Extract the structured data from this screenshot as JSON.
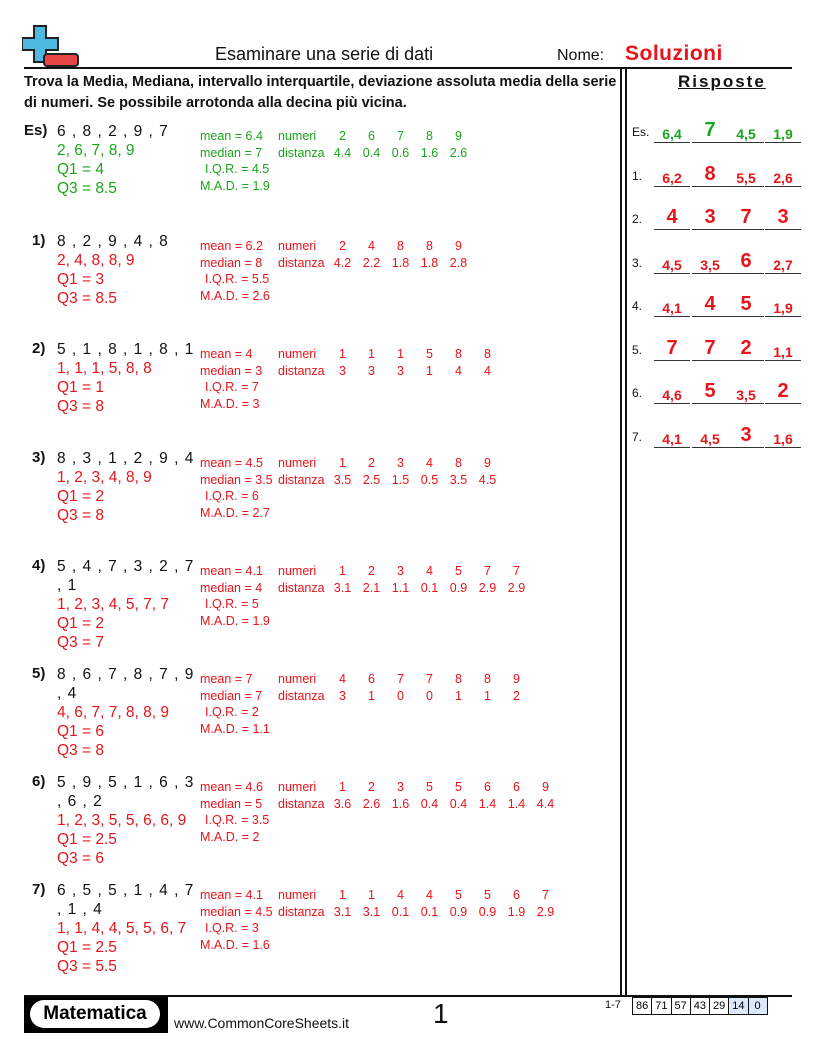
{
  "header": {
    "title": "Esaminare una serie di dati",
    "name_label": "Nome:",
    "name_value": "Soluzioni"
  },
  "instructions": "Trova la Media, Mediana, intervallo interquartile, deviazione assoluta media della serie di numeri. Se possibile arrotonda alla decina più vicina.",
  "answers_title": "Risposte",
  "colors": {
    "example": "#1aa51a",
    "answer": "#e8141b",
    "logo_blue": "#4db8e0",
    "logo_red": "#e84545"
  },
  "problems": [
    {
      "label": "Es)",
      "data": "6 , 8 , 2 , 9 , 7",
      "sorted": "2, 6, 7, 8, 9",
      "q1": "Q1 = 4",
      "q3": "Q3 = 8.5",
      "mean": "mean = 6.4",
      "median": "median = 7",
      "numeri_label": "numeri",
      "distanza_label": "distanza",
      "numeri": [
        "2",
        "6",
        "7",
        "8",
        "9"
      ],
      "distanza": [
        "4.4",
        "0.4",
        "0.6",
        "1.6",
        "2.6"
      ],
      "iqr": "I.Q.R. = 4.5",
      "mad": "M.A.D. = 1.9"
    },
    {
      "label": "1)",
      "data": "8 , 2 , 9 , 4 , 8",
      "sorted": "2, 4, 8, 8, 9",
      "q1": "Q1 = 3",
      "q3": "Q3 = 8.5",
      "mean": "mean = 6.2",
      "median": "median = 8",
      "numeri_label": "numeri",
      "distanza_label": "distanza",
      "numeri": [
        "2",
        "4",
        "8",
        "8",
        "9"
      ],
      "distanza": [
        "4.2",
        "2.2",
        "1.8",
        "1.8",
        "2.8"
      ],
      "iqr": "I.Q.R. = 5.5",
      "mad": "M.A.D. = 2.6"
    },
    {
      "label": "2)",
      "data": "5 , 1 , 8 , 1 , 8 , 1",
      "sorted": "1, 1, 1, 5, 8, 8",
      "q1": "Q1 = 1",
      "q3": "Q3 = 8",
      "mean": "mean = 4",
      "median": "median = 3",
      "numeri_label": "numeri",
      "distanza_label": "distanza",
      "numeri": [
        "1",
        "1",
        "1",
        "5",
        "8",
        "8"
      ],
      "distanza": [
        "3",
        "3",
        "3",
        "1",
        "4",
        "4"
      ],
      "iqr": "I.Q.R. = 7",
      "mad": "M.A.D. = 3"
    },
    {
      "label": "3)",
      "data": "8 , 3 , 1 , 2 , 9 , 4",
      "sorted": "1, 2, 3, 4, 8, 9",
      "q1": "Q1 = 2",
      "q3": "Q3 = 8",
      "mean": "mean = 4.5",
      "median": "median = 3.5",
      "numeri_label": "numeri",
      "distanza_label": "distanza",
      "numeri": [
        "1",
        "2",
        "3",
        "4",
        "8",
        "9"
      ],
      "distanza": [
        "3.5",
        "2.5",
        "1.5",
        "0.5",
        "3.5",
        "4.5"
      ],
      "iqr": "I.Q.R. = 6",
      "mad": "M.A.D. = 2.7"
    },
    {
      "label": "4)",
      "data": "5 , 4 , 7 , 3 , 2 , 7 , 1",
      "sorted": "1, 2, 3, 4, 5, 7, 7",
      "q1": "Q1 = 2",
      "q3": "Q3 = 7",
      "mean": "mean = 4.1",
      "median": "median = 4",
      "numeri_label": "numeri",
      "distanza_label": "distanza",
      "numeri": [
        "1",
        "2",
        "3",
        "4",
        "5",
        "7",
        "7"
      ],
      "distanza": [
        "3.1",
        "2.1",
        "1.1",
        "0.1",
        "0.9",
        "2.9",
        "2.9"
      ],
      "iqr": "I.Q.R. = 5",
      "mad": "M.A.D. = 1.9"
    },
    {
      "label": "5)",
      "data": "8 , 6 , 7 , 8 , 7 , 9 , 4",
      "sorted": "4, 6, 7, 7, 8, 8, 9",
      "q1": "Q1 = 6",
      "q3": "Q3 = 8",
      "mean": "mean = 7",
      "median": "median = 7",
      "numeri_label": "numeri",
      "distanza_label": "distanza",
      "numeri": [
        "4",
        "6",
        "7",
        "7",
        "8",
        "8",
        "9"
      ],
      "distanza": [
        "3",
        "1",
        "0",
        "0",
        "1",
        "1",
        "2"
      ],
      "iqr": "I.Q.R. = 2",
      "mad": "M.A.D. = 1.1"
    },
    {
      "label": "6)",
      "data": "5 , 9 , 5 , 1 , 6 , 3 , 6 , 2",
      "sorted": "1, 2, 3, 5, 5, 6, 6, 9",
      "q1": "Q1 = 2.5",
      "q3": "Q3 = 6",
      "mean": "mean = 4.6",
      "median": "median = 5",
      "numeri_label": "numeri",
      "distanza_label": "distanza",
      "numeri": [
        "1",
        "2",
        "3",
        "5",
        "5",
        "6",
        "6",
        "9"
      ],
      "distanza": [
        "3.6",
        "2.6",
        "1.6",
        "0.4",
        "0.4",
        "1.4",
        "1.4",
        "4.4"
      ],
      "iqr": "I.Q.R. = 3.5",
      "mad": "M.A.D. = 2"
    },
    {
      "label": "7)",
      "data": "6 , 5 , 5 , 1 , 4 , 7 , 1 , 4",
      "sorted": "1, 1, 4, 4, 5, 5, 6, 7",
      "q1": "Q1 = 2.5",
      "q3": "Q3 = 5.5",
      "mean": "mean = 4.1",
      "median": "median = 4.5",
      "numeri_label": "numeri",
      "distanza_label": "distanza",
      "numeri": [
        "1",
        "1",
        "4",
        "4",
        "5",
        "5",
        "6",
        "7"
      ],
      "distanza": [
        "3.1",
        "3.1",
        "0.1",
        "0.1",
        "0.9",
        "0.9",
        "1.9",
        "2.9"
      ],
      "iqr": "I.Q.R. = 3",
      "mad": "M.A.D. = 1.6"
    }
  ],
  "answers": [
    {
      "label": "Es.",
      "values": [
        "6,4",
        "7",
        "4,5",
        "1,9"
      ]
    },
    {
      "label": "1.",
      "values": [
        "6,2",
        "8",
        "5,5",
        "2,6"
      ]
    },
    {
      "label": "2.",
      "values": [
        "4",
        "3",
        "7",
        "3"
      ]
    },
    {
      "label": "3.",
      "values": [
        "4,5",
        "3,5",
        "6",
        "2,7"
      ]
    },
    {
      "label": "4.",
      "values": [
        "4,1",
        "4",
        "5",
        "1,9"
      ]
    },
    {
      "label": "5.",
      "values": [
        "7",
        "7",
        "2",
        "1,1"
      ]
    },
    {
      "label": "6.",
      "values": [
        "4,6",
        "5",
        "3,5",
        "2"
      ]
    },
    {
      "label": "7.",
      "values": [
        "4,1",
        "4,5",
        "3",
        "1,6"
      ]
    }
  ],
  "footer": {
    "brand": "Matematica",
    "site": "www.CommonCoreSheets.it",
    "page": "1",
    "range": "1-7",
    "scores": [
      "86",
      "71",
      "57",
      "43",
      "29",
      "14",
      "0"
    ]
  }
}
